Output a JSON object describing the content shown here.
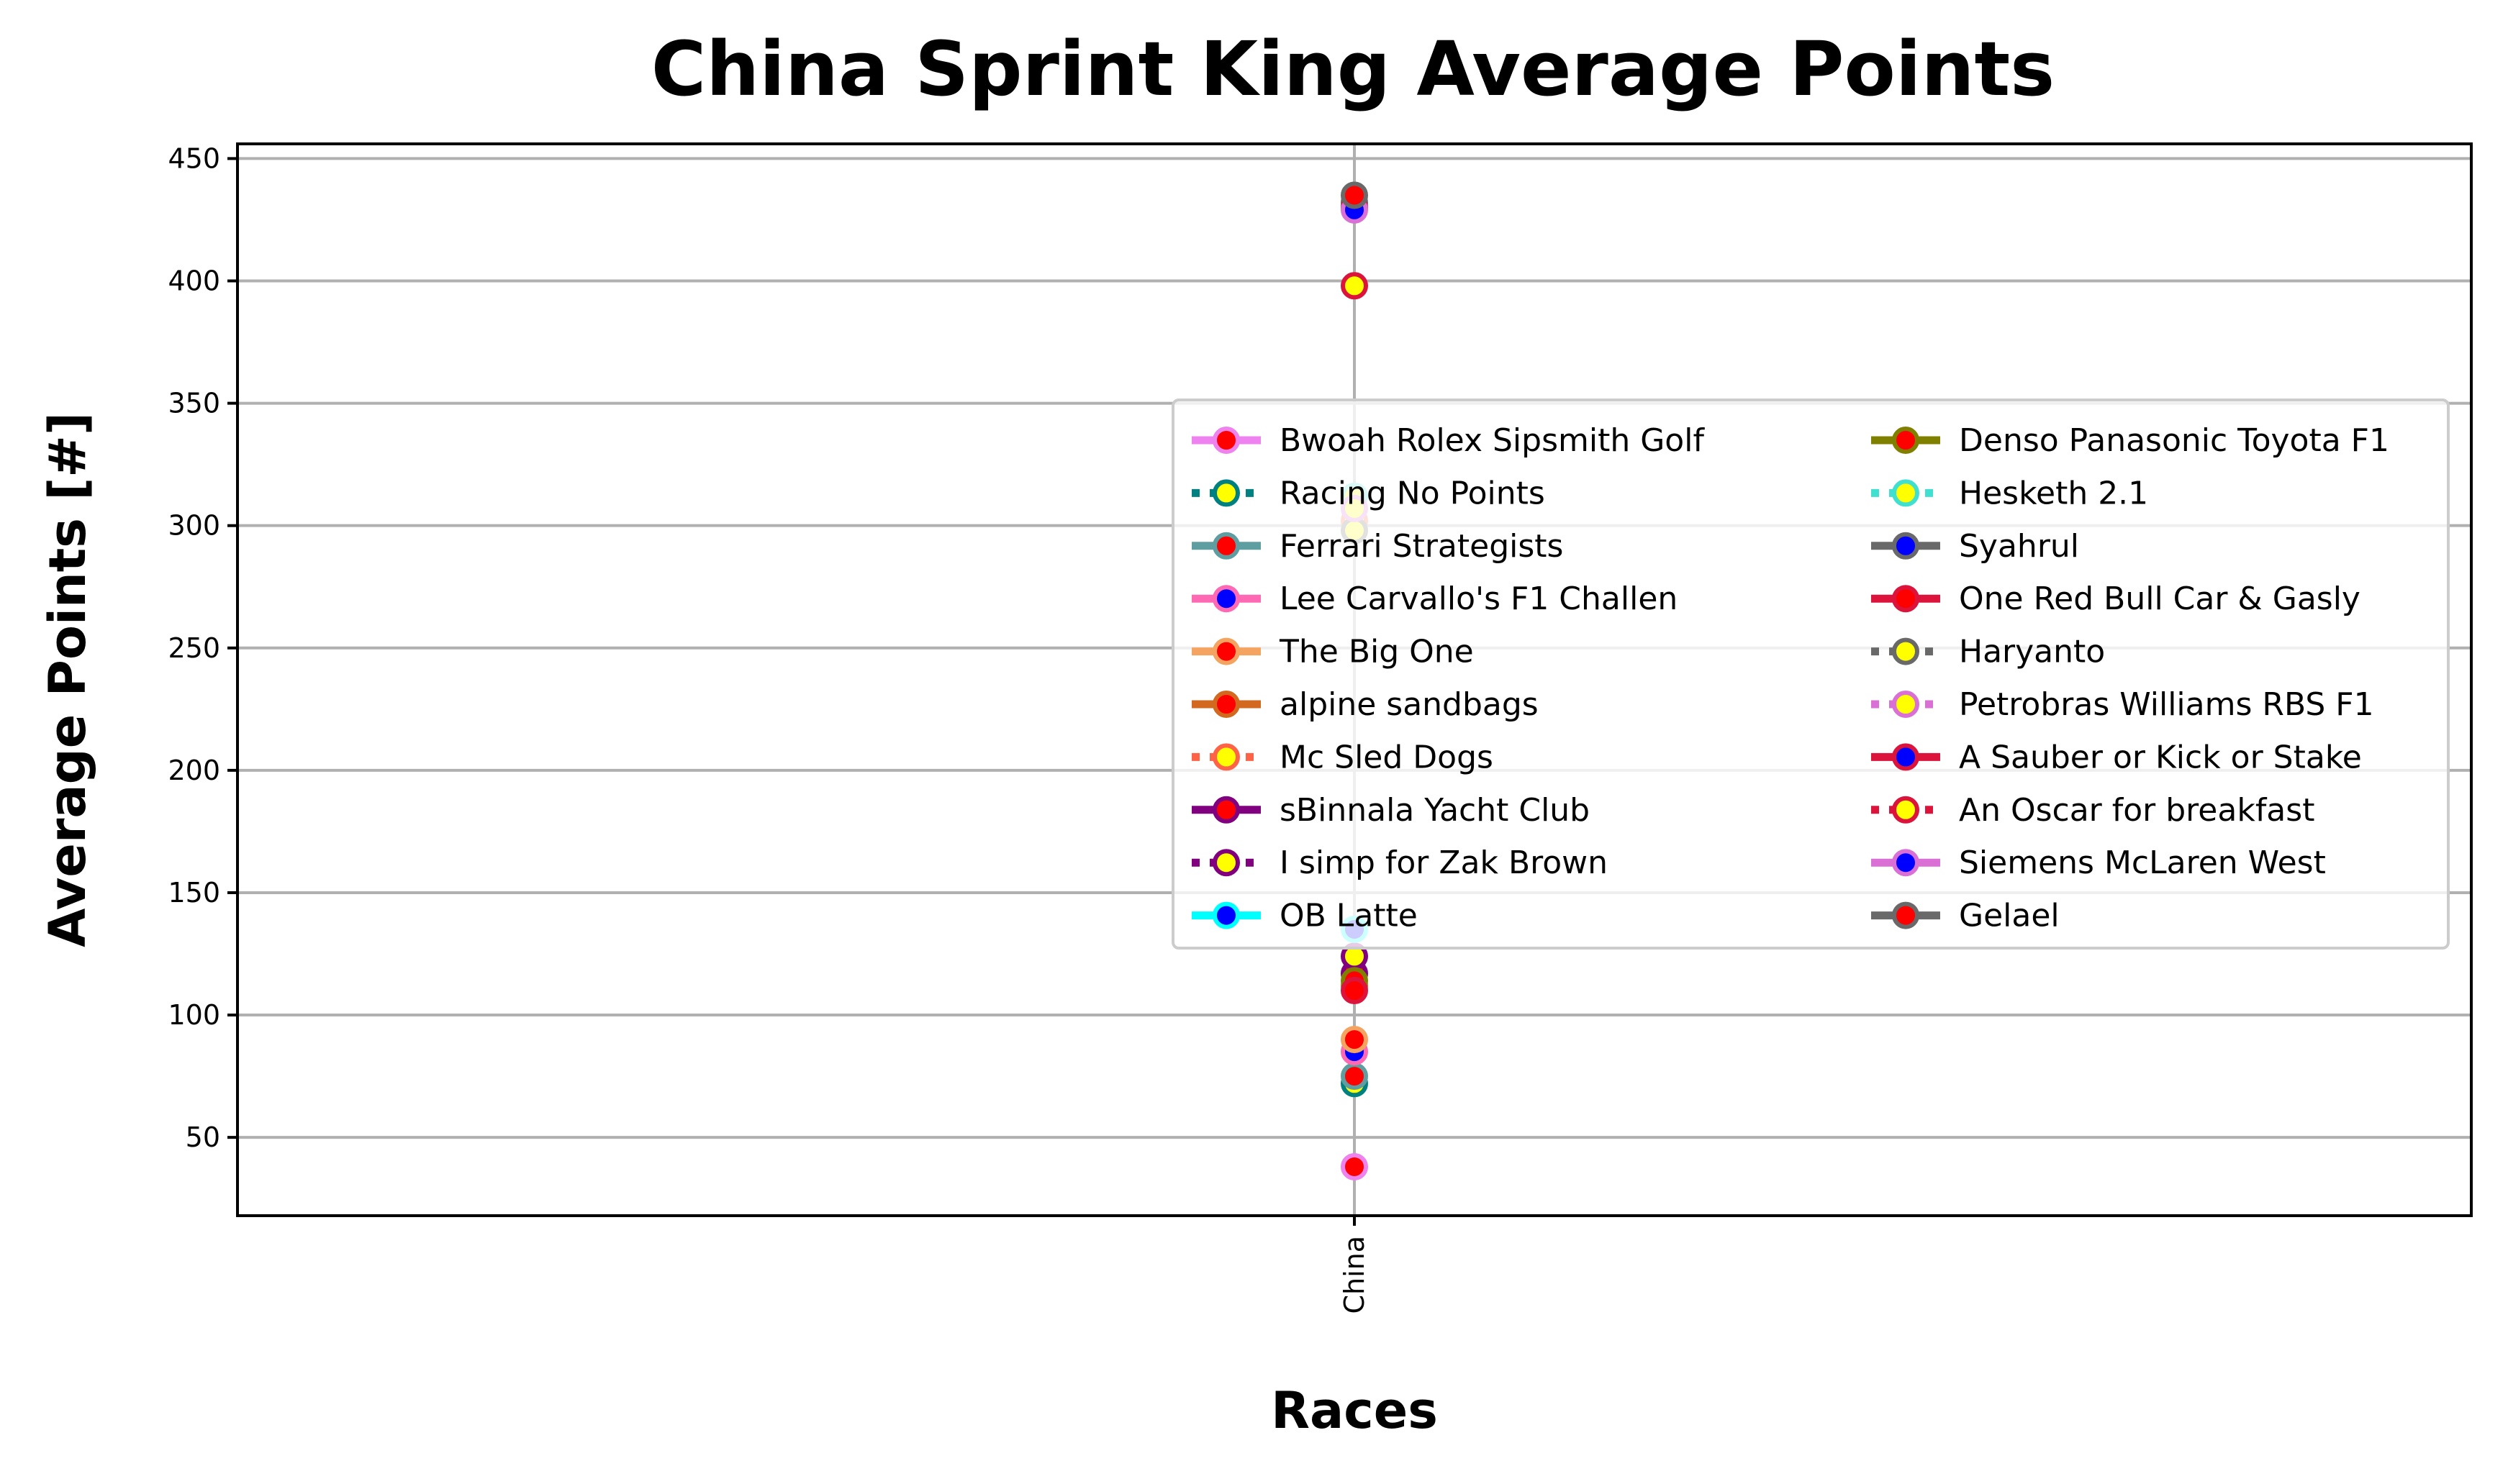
{
  "chart_data": {
    "type": "line",
    "title": "China Sprint King Average Points",
    "xlabel": "Races",
    "ylabel": "Average Points [#]",
    "categories": [
      "China"
    ],
    "ylim": [
      18,
      456
    ],
    "yticks": [
      50,
      100,
      150,
      200,
      250,
      300,
      350,
      400,
      450
    ],
    "grid": true,
    "legend_position": "center-right",
    "series": [
      {
        "name": "Bwoah Rolex Sipsmith Golf",
        "values": [
          38
        ],
        "line": "#ee82ee",
        "dash": "solid",
        "marker_edge": "#ee82ee",
        "marker_face": "#ff0000"
      },
      {
        "name": "Racing No Points",
        "values": [
          72
        ],
        "line": "#008080",
        "dash": "dotted",
        "marker_edge": "#008080",
        "marker_face": "#ffff00"
      },
      {
        "name": "Ferrari Strategists",
        "values": [
          75
        ],
        "line": "#5f9ea0",
        "dash": "solid",
        "marker_edge": "#5f9ea0",
        "marker_face": "#ff0000"
      },
      {
        "name": "Lee Carvallo's F1 Challen",
        "values": [
          85
        ],
        "line": "#ff69b4",
        "dash": "solid",
        "marker_edge": "#ff69b4",
        "marker_face": "#0000ff"
      },
      {
        "name": "The Big One",
        "values": [
          90
        ],
        "line": "#f4a460",
        "dash": "solid",
        "marker_edge": "#f4a460",
        "marker_face": "#ff0000"
      },
      {
        "name": "alpine sandbags",
        "values": [
          112
        ],
        "line": "#d2691e",
        "dash": "solid",
        "marker_edge": "#d2691e",
        "marker_face": "#ff0000"
      },
      {
        "name": "Mc Sled Dogs",
        "values": [
          302
        ],
        "line": "#ff6347",
        "dash": "dotted",
        "marker_edge": "#ff6347",
        "marker_face": "#ffff00"
      },
      {
        "name": "sBinnala Yacht Club",
        "values": [
          117
        ],
        "line": "#800080",
        "dash": "solid",
        "marker_edge": "#800080",
        "marker_face": "#ff0000"
      },
      {
        "name": "I simp for Zak Brown",
        "values": [
          124
        ],
        "line": "#800080",
        "dash": "dotted",
        "marker_edge": "#800080",
        "marker_face": "#ffff00"
      },
      {
        "name": "OB Latte",
        "values": [
          135
        ],
        "line": "#00ffff",
        "dash": "solid",
        "marker_edge": "#00ffff",
        "marker_face": "#0000ff"
      },
      {
        "name": "Denso Panasonic Toyota F1",
        "values": [
          114
        ],
        "line": "#808000",
        "dash": "solid",
        "marker_edge": "#808000",
        "marker_face": "#ff0000"
      },
      {
        "name": "Hesketh 2.1",
        "values": [
          312
        ],
        "line": "#40e0d0",
        "dash": "dotted",
        "marker_edge": "#40e0d0",
        "marker_face": "#ffff00"
      },
      {
        "name": "Syahrul",
        "values": [
          432
        ],
        "line": "#696969",
        "dash": "solid",
        "marker_edge": "#696969",
        "marker_face": "#0000ff"
      },
      {
        "name": "One Red Bull Car & Gasly",
        "values": [
          110
        ],
        "line": "#dc143c",
        "dash": "solid",
        "marker_edge": "#dc143c",
        "marker_face": "#ff0000"
      },
      {
        "name": "Haryanto",
        "values": [
          298
        ],
        "line": "#696969",
        "dash": "dotted",
        "marker_edge": "#696969",
        "marker_face": "#ffff00"
      },
      {
        "name": "Petrobras Williams RBS F1",
        "values": [
          307
        ],
        "line": "#da70d6",
        "dash": "dotted",
        "marker_edge": "#da70d6",
        "marker_face": "#ffff00"
      },
      {
        "name": "A Sauber or Kick or Stake",
        "values": [
          430
        ],
        "line": "#dc143c",
        "dash": "solid",
        "marker_edge": "#dc143c",
        "marker_face": "#0000ff"
      },
      {
        "name": "An Oscar for breakfast",
        "values": [
          398
        ],
        "line": "#dc143c",
        "dash": "dotted",
        "marker_edge": "#dc143c",
        "marker_face": "#ffff00"
      },
      {
        "name": "Siemens McLaren West",
        "values": [
          429
        ],
        "line": "#da70d6",
        "dash": "solid",
        "marker_edge": "#da70d6",
        "marker_face": "#0000ff"
      },
      {
        "name": "Gelael",
        "values": [
          435
        ],
        "line": "#696969",
        "dash": "solid",
        "marker_edge": "#696969",
        "marker_face": "#ff0000"
      }
    ]
  }
}
